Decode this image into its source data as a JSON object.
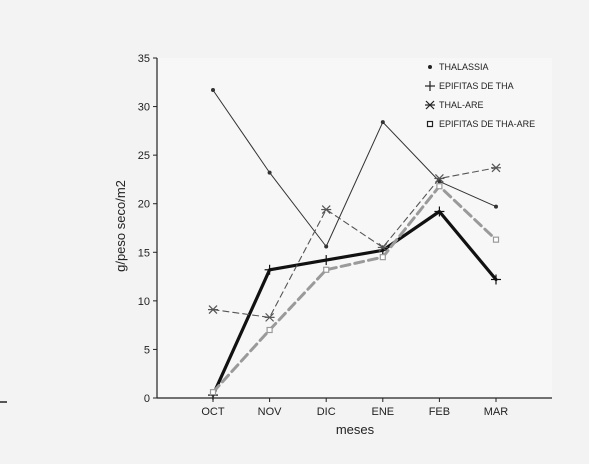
{
  "chart_data": {
    "type": "line",
    "title": "",
    "xlabel": "meses",
    "ylabel": "g/peso seco/m2",
    "categories": [
      "OCT",
      "NOV",
      "DIC",
      "ENE",
      "FEB",
      "MAR"
    ],
    "ylim": [
      0,
      35
    ],
    "yticks": [
      0,
      5,
      10,
      15,
      20,
      25,
      30,
      35
    ],
    "grid": false,
    "legend_position": "top-right",
    "series": [
      {
        "name": "THALASSIA",
        "values": [
          31.7,
          23.2,
          15.6,
          28.4,
          22.3,
          19.7
        ],
        "color": "#333333",
        "style": "solid-thin",
        "marker": "dot"
      },
      {
        "name": "EPIFITAS DE THA",
        "values": [
          0.3,
          13.2,
          14.2,
          15.2,
          19.2,
          12.2
        ],
        "color": "#111111",
        "style": "solid-thick",
        "marker": "plus"
      },
      {
        "name": "THAL-ARE",
        "values": [
          9.1,
          8.3,
          19.4,
          15.5,
          22.6,
          23.7
        ],
        "color": "#555555",
        "style": "dashed-thin",
        "marker": "asterisk"
      },
      {
        "name": "EPIFITAS DE THA-ARE",
        "values": [
          0.6,
          7.0,
          13.2,
          14.5,
          21.8,
          16.3
        ],
        "color": "#9a9a9a",
        "style": "dashed-thick",
        "marker": "square"
      }
    ]
  }
}
